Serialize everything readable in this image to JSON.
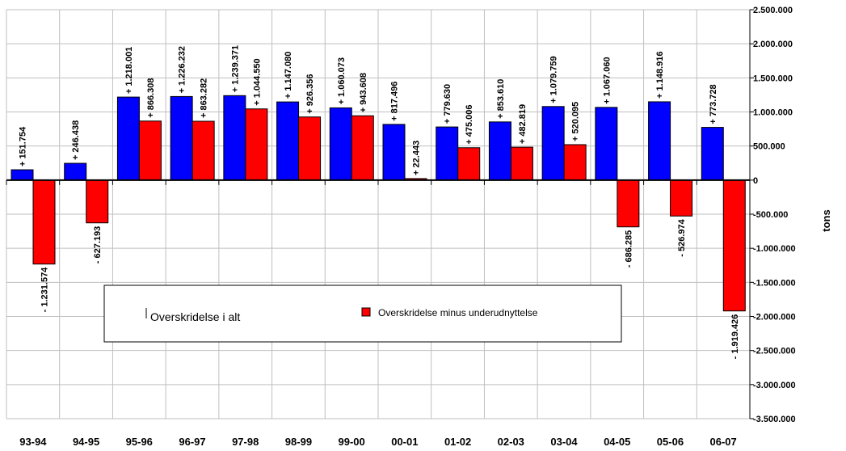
{
  "chart_data": {
    "type": "bar",
    "categories": [
      "93-94",
      "94-95",
      "95-96",
      "96-97",
      "97-98",
      "98-99",
      "99-00",
      "00-01",
      "01-02",
      "02-03",
      "03-04",
      "04-05",
      "05-06",
      "06-07"
    ],
    "series": [
      {
        "name": "Overskridelse i alt",
        "color": "#0000ff",
        "values": [
          151754,
          246438,
          1218001,
          1226232,
          1239371,
          1147080,
          1060073,
          817496,
          779630,
          853610,
          1079759,
          1067060,
          1148916,
          773728
        ],
        "labels": [
          "+ 151.754",
          "+ 246.438",
          "+ 1.218.001",
          "+ 1.226.232",
          "+ 1.239.371",
          "+ 1.147.080",
          "+ 1.060.073",
          "+ 817.496",
          "+ 779.630",
          "+ 853.610",
          "+ 1.079.759",
          "+ 1.067.060",
          "+ 1.148.916",
          "+ 773.728"
        ]
      },
      {
        "name": "Overskridelse minus underudnyttelse",
        "color": "#ff0000",
        "values": [
          -1231574,
          -627193,
          866308,
          863282,
          1044550,
          926356,
          943608,
          22443,
          475006,
          482819,
          520095,
          -686285,
          -526974,
          -1919426
        ],
        "labels": [
          "- 1.231.574",
          "- 627.193",
          "+ 866.308",
          "+ 863.282",
          "+ 1.044.550",
          "+ 926.356",
          "+ 943.608",
          "+ 22.443",
          "+ 475.006",
          "+ 482.819",
          "+ 520.095",
          "- 686.285",
          "- 526.974",
          "- 1.919.426"
        ]
      }
    ],
    "ylim": [
      -3500000,
      2500000
    ],
    "yticks": [
      2500000,
      2000000,
      1500000,
      1000000,
      500000,
      0,
      -500000,
      -1000000,
      -1500000,
      -2000000,
      -2500000,
      -3000000,
      -3500000
    ],
    "ytick_labels": [
      "2.500.000",
      "2.000.000",
      "1.500.000",
      "1.000.000",
      "500.000",
      "0",
      "-500.000",
      "-1.000.000",
      "-1.500.000",
      "-2.000.000",
      "-2.500.000",
      "-3.000.000",
      "-3.500.000"
    ],
    "ylabel": "tons",
    "y_axis_side": "right",
    "grid": true,
    "legend": [
      "Overskridelse i alt",
      "Overskridelse minus underudnyttelse"
    ],
    "legend_placement": "lower-center"
  }
}
